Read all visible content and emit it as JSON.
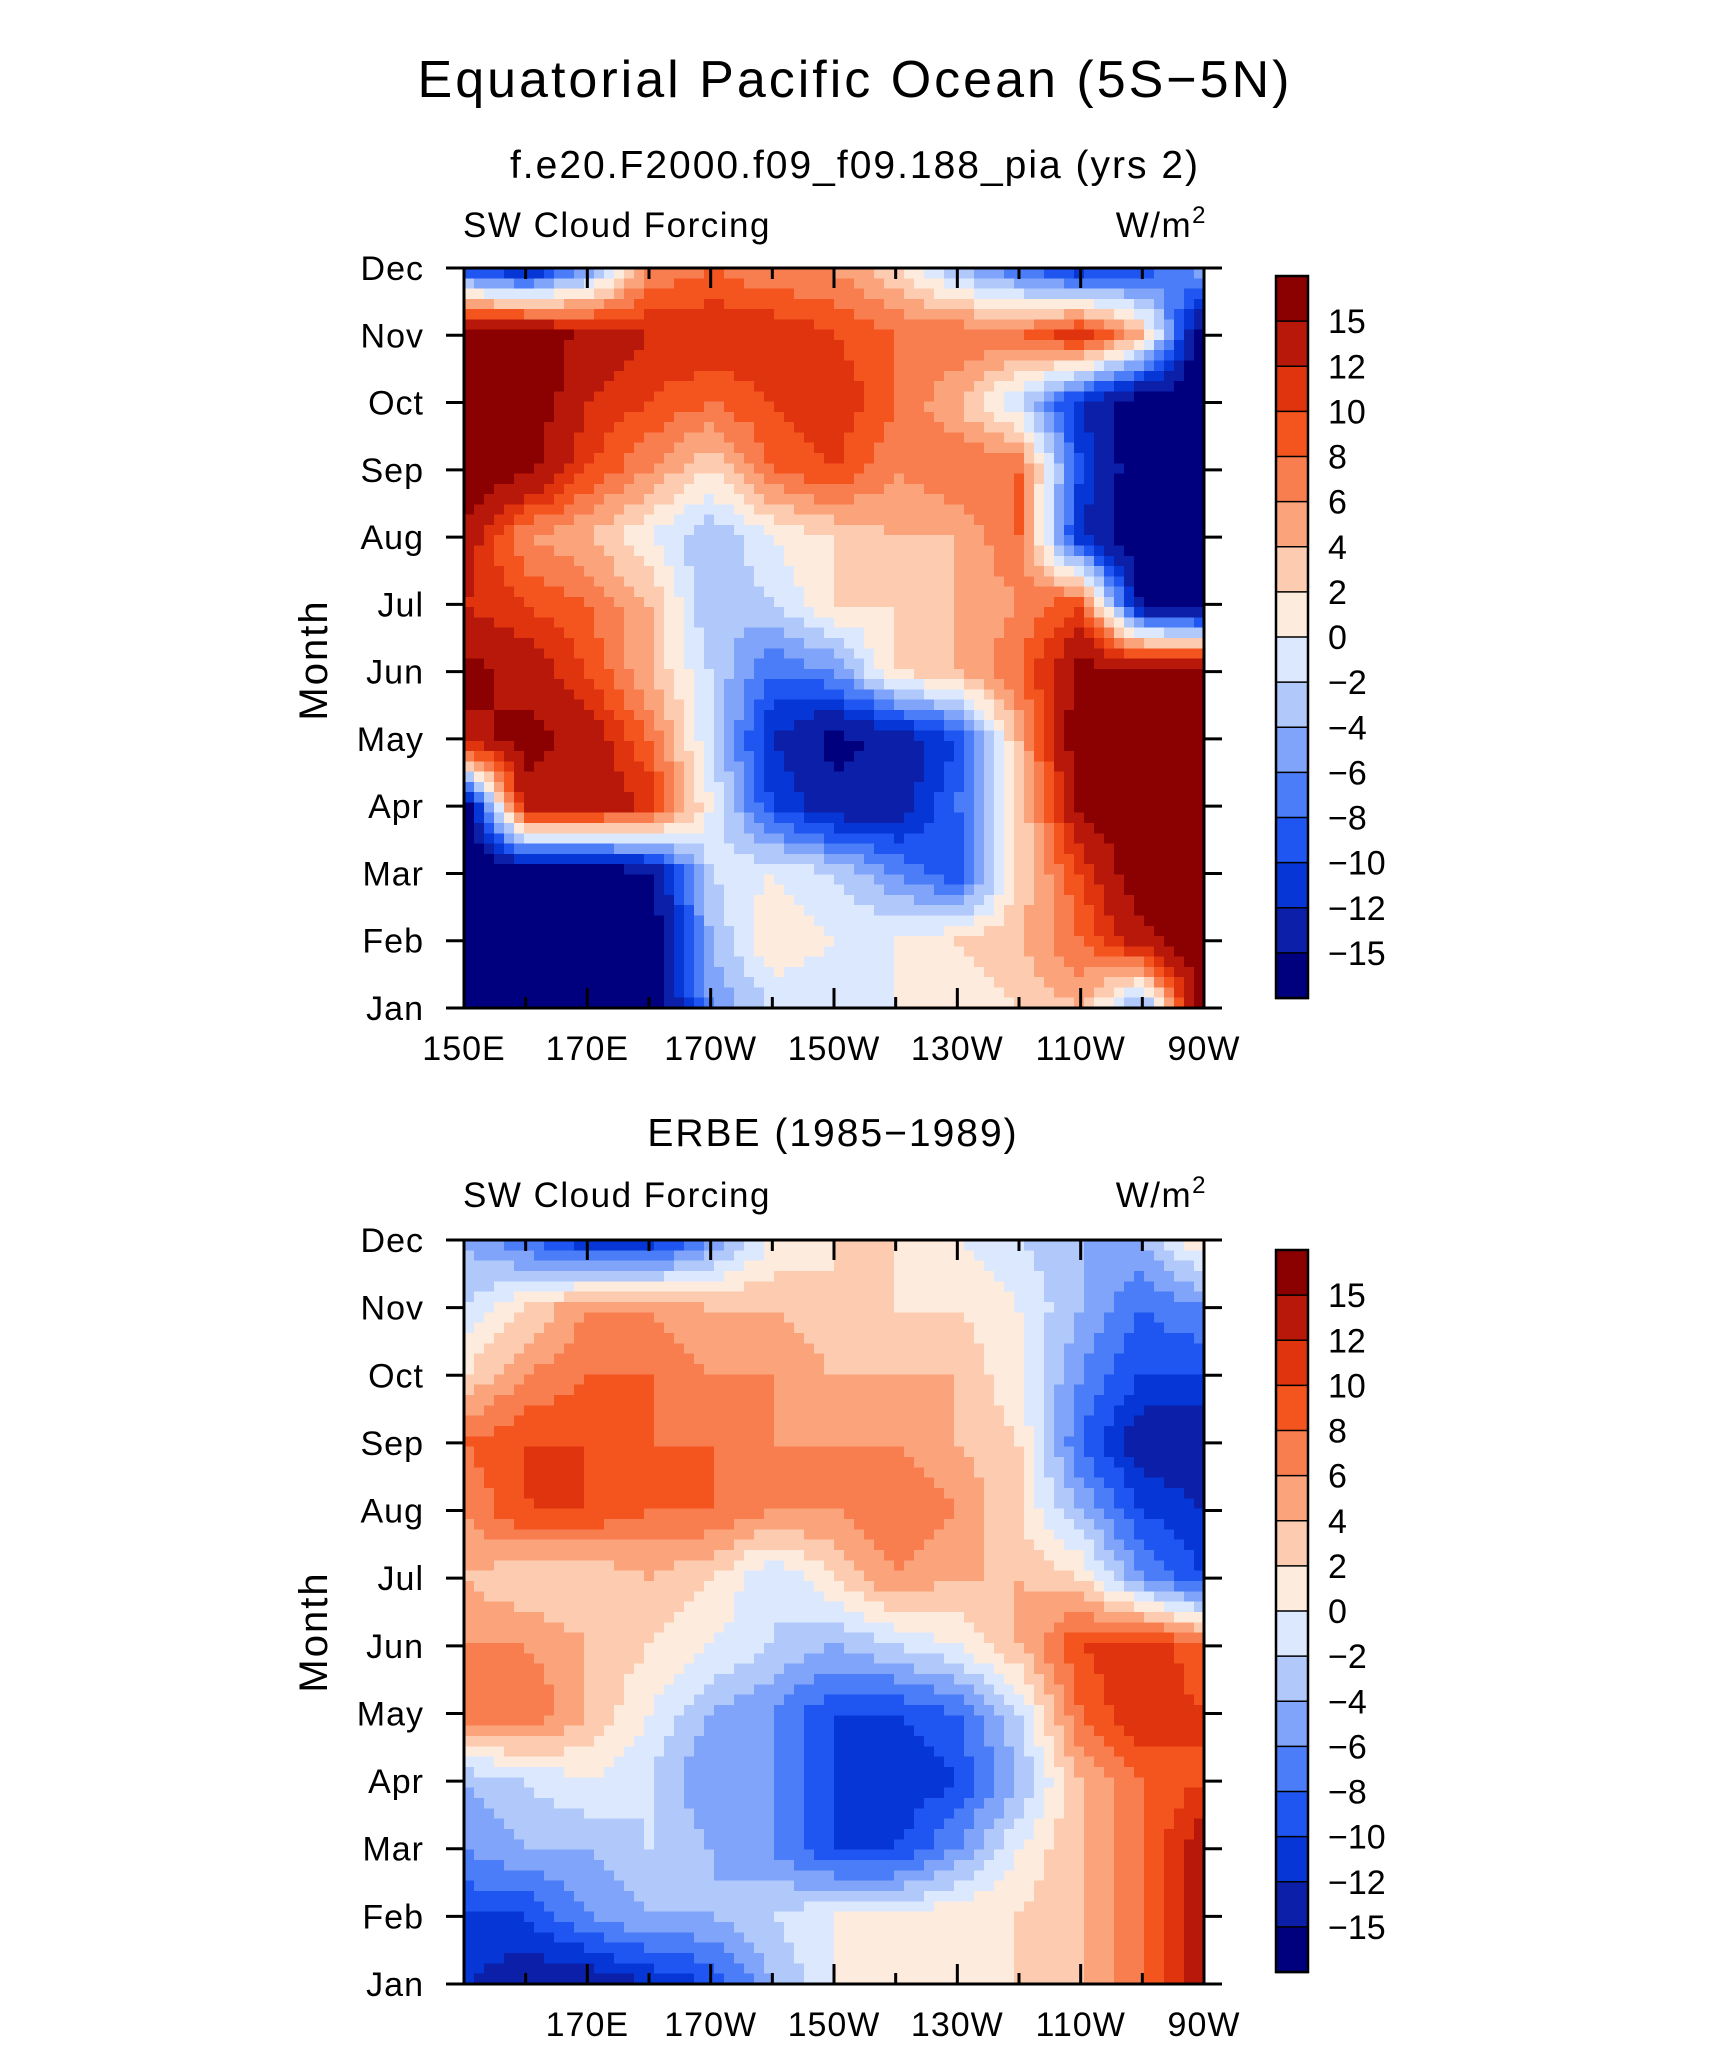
{
  "figure": {
    "title": "Equatorial Pacific Ocean (5S−5N)"
  },
  "chart_data": [
    {
      "type": "heatmap",
      "title": "f.e20.F2000.f09_f09.188_pia (yrs 2)",
      "left_label": "SW Cloud Forcing",
      "right_label": "W/m",
      "right_label_sup": "2",
      "ylabel": "Month",
      "xlabel": "",
      "x_ticks": [
        "150E",
        "170E",
        "170W",
        "150W",
        "130W",
        "110W",
        "90W"
      ],
      "y_ticks": [
        "Jan",
        "Feb",
        "Mar",
        "Apr",
        "May",
        "Jun",
        "Jul",
        "Aug",
        "Sep",
        "Oct",
        "Nov",
        "Dec"
      ],
      "xlim": [
        150,
        270
      ],
      "ylim": [
        1,
        12
      ],
      "x": [
        150,
        160,
        170,
        180,
        190,
        200,
        210,
        220,
        230,
        240,
        250,
        260,
        270
      ],
      "y": [
        1,
        2,
        3,
        4,
        5,
        6,
        7,
        8,
        9,
        10,
        11,
        12
      ],
      "z": [
        [
          -18,
          -18,
          -18,
          -18,
          -6,
          -2,
          -2,
          0,
          0,
          2,
          4,
          -6,
          18
        ],
        [
          -18,
          -18,
          -18,
          -18,
          -4,
          2,
          0,
          0,
          2,
          4,
          8,
          14,
          18
        ],
        [
          -18,
          -18,
          -18,
          -16,
          -2,
          0,
          -2,
          -6,
          -10,
          2,
          10,
          18,
          18
        ],
        [
          -18,
          14,
          14,
          12,
          0,
          -10,
          -14,
          -14,
          -8,
          2,
          16,
          18,
          18
        ],
        [
          14,
          16,
          14,
          8,
          -2,
          -12,
          -16,
          -14,
          -10,
          4,
          18,
          18,
          18
        ],
        [
          16,
          14,
          10,
          4,
          -2,
          -8,
          -6,
          2,
          4,
          8,
          16,
          18,
          18
        ],
        [
          12,
          10,
          8,
          4,
          -4,
          -2,
          2,
          2,
          4,
          6,
          10,
          -16,
          -18
        ],
        [
          14,
          6,
          4,
          0,
          -4,
          0,
          2,
          4,
          4,
          8,
          -12,
          -18,
          -18
        ],
        [
          18,
          16,
          10,
          6,
          2,
          8,
          10,
          6,
          8,
          8,
          -10,
          -18,
          -18
        ],
        [
          18,
          18,
          12,
          10,
          8,
          10,
          12,
          8,
          4,
          -2,
          -12,
          -18,
          -18
        ],
        [
          18,
          18,
          14,
          12,
          12,
          12,
          10,
          8,
          8,
          8,
          12,
          4,
          -18
        ],
        [
          -10,
          -14,
          -6,
          6,
          8,
          6,
          6,
          2,
          -4,
          -8,
          -12,
          -10,
          -4
        ]
      ],
      "colorbar": {
        "levels": [
          -15,
          -12,
          -10,
          -8,
          -6,
          -4,
          -2,
          0,
          2,
          4,
          6,
          8,
          10,
          12,
          15
        ],
        "labels": [
          "15",
          "12",
          "10",
          "8",
          "6",
          "4",
          "2",
          "0",
          "−2",
          "−4",
          "−6",
          "−8",
          "−10",
          "−12",
          "−15"
        ],
        "colors": [
          "#00007f",
          "#0b1fa8",
          "#0637d6",
          "#1f55f0",
          "#4a7df7",
          "#7fa4f9",
          "#b1c8fb",
          "#dbe8fe",
          "#fdecdd",
          "#fccbb0",
          "#fba47c",
          "#f87e4f",
          "#f4541e",
          "#e0340e",
          "#b8180a",
          "#8b0000"
        ]
      }
    },
    {
      "type": "heatmap",
      "title": "ERBE (1985−1989)",
      "left_label": "SW Cloud Forcing",
      "right_label": "W/m",
      "right_label_sup": "2",
      "ylabel": "Month",
      "xlabel": "",
      "x_ticks": [
        "170E",
        "170W",
        "150W",
        "130W",
        "110W",
        "90W"
      ],
      "y_ticks": [
        "Jan",
        "Feb",
        "Mar",
        "Apr",
        "May",
        "Jun",
        "Jul",
        "Aug",
        "Sep",
        "Oct",
        "Nov",
        "Dec"
      ],
      "xlim": [
        150,
        270
      ],
      "ylim": [
        1,
        12
      ],
      "x": [
        150,
        160,
        170,
        180,
        190,
        200,
        210,
        220,
        230,
        240,
        250,
        260,
        270
      ],
      "y": [
        1,
        2,
        3,
        4,
        5,
        6,
        7,
        8,
        9,
        10,
        11,
        12
      ],
      "z": [
        [
          -12,
          -14,
          -14,
          -12,
          -10,
          -4,
          0,
          2,
          0,
          2,
          4,
          8,
          14
        ],
        [
          -10,
          -10,
          -6,
          -4,
          -4,
          -2,
          0,
          0,
          2,
          2,
          4,
          8,
          14
        ],
        [
          -6,
          -4,
          -4,
          -2,
          -4,
          -6,
          -10,
          -10,
          -6,
          0,
          4,
          8,
          14
        ],
        [
          -4,
          -2,
          0,
          -2,
          -6,
          -6,
          -10,
          -12,
          -10,
          -4,
          4,
          8,
          10
        ],
        [
          8,
          8,
          4,
          0,
          -4,
          -6,
          -10,
          -10,
          -8,
          -2,
          8,
          12,
          10
        ],
        [
          6,
          6,
          4,
          2,
          0,
          -2,
          -4,
          -2,
          0,
          4,
          10,
          12,
          8
        ],
        [
          4,
          2,
          2,
          4,
          2,
          -2,
          2,
          6,
          4,
          4,
          2,
          -6,
          -10
        ],
        [
          6,
          10,
          10,
          8,
          8,
          6,
          6,
          8,
          6,
          2,
          -4,
          -10,
          -12
        ],
        [
          8,
          10,
          10,
          8,
          8,
          6,
          6,
          6,
          4,
          2,
          -8,
          -14,
          -14
        ],
        [
          2,
          6,
          8,
          8,
          6,
          6,
          4,
          4,
          4,
          0,
          -6,
          -10,
          -10
        ],
        [
          -2,
          2,
          6,
          6,
          4,
          4,
          2,
          2,
          2,
          0,
          -4,
          -8,
          -6
        ],
        [
          -4,
          -8,
          -12,
          -12,
          -6,
          0,
          2,
          2,
          0,
          -2,
          -4,
          -4,
          2
        ]
      ],
      "colorbar": {
        "levels": [
          -15,
          -12,
          -10,
          -8,
          -6,
          -4,
          -2,
          0,
          2,
          4,
          6,
          8,
          10,
          12,
          15
        ],
        "labels": [
          "15",
          "12",
          "10",
          "8",
          "6",
          "4",
          "2",
          "0",
          "−2",
          "−4",
          "−6",
          "−8",
          "−10",
          "−12",
          "−15"
        ],
        "colors": [
          "#00007f",
          "#0b1fa8",
          "#0637d6",
          "#1f55f0",
          "#4a7df7",
          "#7fa4f9",
          "#b1c8fb",
          "#dbe8fe",
          "#fdecdd",
          "#fccbb0",
          "#fba47c",
          "#f87e4f",
          "#f4541e",
          "#e0340e",
          "#b8180a",
          "#8b0000"
        ]
      }
    }
  ]
}
